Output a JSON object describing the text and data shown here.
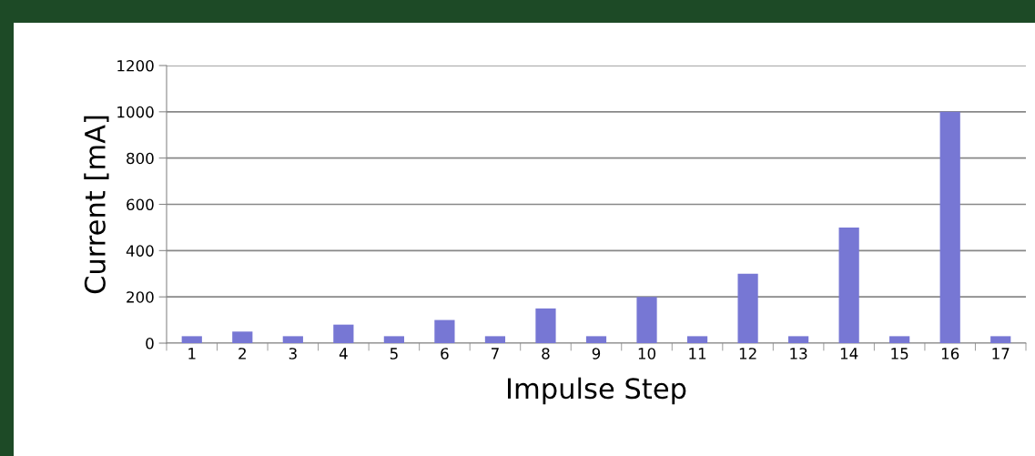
{
  "chart_data": {
    "type": "bar",
    "xlabel": "Impulse Step",
    "ylabel": "Current [mA]",
    "categories": [
      "1",
      "2",
      "3",
      "4",
      "5",
      "6",
      "7",
      "8",
      "9",
      "10",
      "11",
      "12",
      "13",
      "14",
      "15",
      "16",
      "17"
    ],
    "values": [
      30,
      50,
      30,
      80,
      30,
      100,
      30,
      150,
      30,
      200,
      30,
      300,
      30,
      500,
      30,
      1000,
      30
    ],
    "color": "#7777d4",
    "ylim": [
      0,
      1200
    ],
    "yticks": [
      0,
      200,
      400,
      600,
      800,
      1000,
      1200
    ],
    "grid": "y",
    "legend": false
  }
}
